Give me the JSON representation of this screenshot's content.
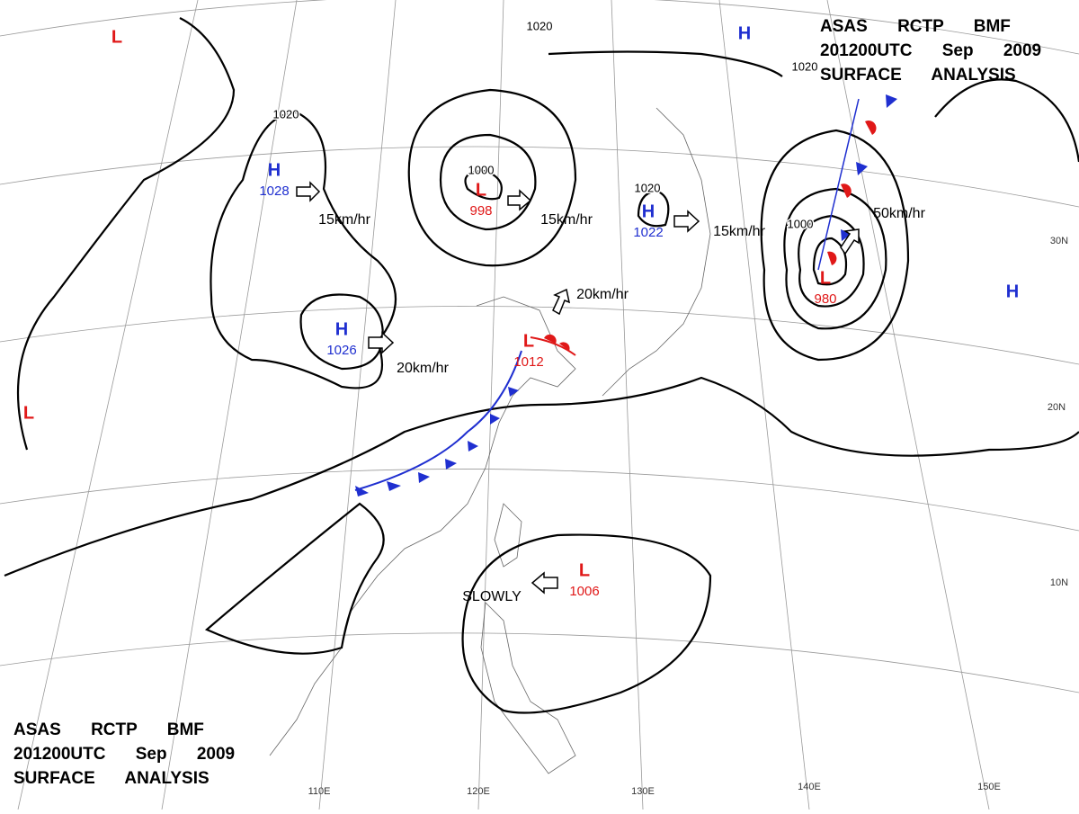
{
  "header_top": {
    "lines": [
      "ASAS RCTP BMF",
      "201200UTC Sep 2009",
      "SURFACE ANALYSIS"
    ]
  },
  "header_bottom": {
    "lines": [
      "ASAS RCTP BMF",
      "201200UTC Sep 2009",
      "SURFACE ANALYSIS"
    ]
  },
  "pressure_systems": [
    {
      "kind": "H",
      "value": "1028",
      "color": "#1f2fd0"
    },
    {
      "kind": "H",
      "value": "1026",
      "color": "#1f2fd0"
    },
    {
      "kind": "L",
      "value": "998",
      "color": "#e01818"
    },
    {
      "kind": "H",
      "value": "1022",
      "color": "#1f2fd0"
    },
    {
      "kind": "L",
      "value": "1012",
      "color": "#e01818"
    },
    {
      "kind": "L",
      "value": "980",
      "color": "#e01818"
    },
    {
      "kind": "L",
      "value": "1006",
      "color": "#e01818"
    },
    {
      "kind": "L",
      "color": "#e01818"
    },
    {
      "kind": "L",
      "color": "#e01818"
    },
    {
      "kind": "H",
      "color": "#1f2fd0"
    },
    {
      "kind": "H",
      "color": "#1f2fd0"
    }
  ],
  "isobar_labels": [
    "1020",
    "1000",
    "1020",
    "1020",
    "1020",
    "1000"
  ],
  "motion_labels": [
    "15km/hr",
    "15km/hr",
    "20km/hr",
    "20km/hr",
    "15km/hr",
    "50km/hr",
    "SLOWLY"
  ],
  "longitude_labels": [
    "110E",
    "120E",
    "130E",
    "140E",
    "150E"
  ],
  "latitude_labels": [
    "30N",
    "20N",
    "10N"
  ]
}
